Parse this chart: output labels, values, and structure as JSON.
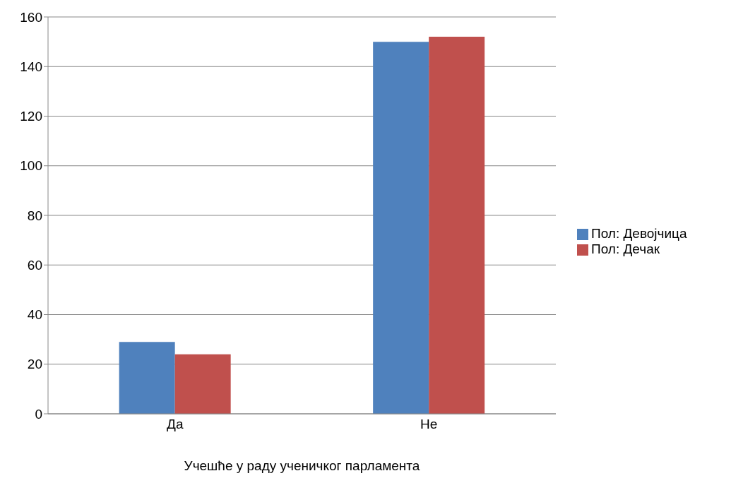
{
  "chart_data": {
    "type": "bar",
    "xlabel": "Учешће у раду ученичког парламента",
    "categories": [
      "Да",
      "Не"
    ],
    "series": [
      {
        "name": "Пол: Девојчица",
        "color": "#4f81bd",
        "values": [
          29,
          150
        ]
      },
      {
        "name": "Пол: Дечак",
        "color": "#c0504d",
        "values": [
          24,
          152
        ]
      }
    ],
    "ylim": [
      0,
      160
    ],
    "yticks": [
      0,
      20,
      40,
      60,
      80,
      100,
      120,
      140,
      160
    ],
    "grid": "y",
    "legend": "right"
  }
}
